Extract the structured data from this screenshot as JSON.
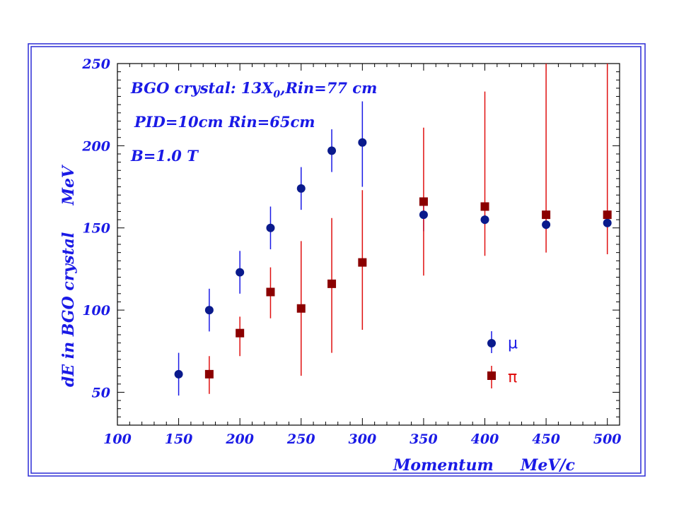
{
  "colors": {
    "frame": "#2b2bd6",
    "axis_text": "#1a1ae6",
    "axis_line": "#000000",
    "mu": "#0a1a8c",
    "pi_fill": "#8b0000",
    "pi_err": "#e01010",
    "mu_err": "#1a1ae6",
    "pi_legend_text": "#e01010"
  },
  "annotations": {
    "line1_a": "BGO crystal:  13X",
    "line1_sub": "0",
    "line1_b": ",Rin=77 cm",
    "line2": "PID=10cm  Rin=65cm",
    "line3": "B=1.0 T"
  },
  "chart_data": {
    "type": "scatter",
    "xlabel": "Momentum     MeV/c",
    "ylabel": "dE in BGO crystal     MeV",
    "xlim": [
      100,
      510
    ],
    "ylim": [
      30,
      250
    ],
    "xticks": [
      100,
      150,
      200,
      250,
      300,
      350,
      400,
      450,
      500
    ],
    "yticks": [
      50,
      100,
      150,
      200,
      250
    ],
    "series": [
      {
        "name": "μ",
        "marker": "circle",
        "points": [
          {
            "x": 150,
            "y": 61,
            "lo": 48,
            "hi": 74
          },
          {
            "x": 175,
            "y": 100,
            "lo": 87,
            "hi": 113
          },
          {
            "x": 200,
            "y": 123,
            "lo": 110,
            "hi": 136
          },
          {
            "x": 225,
            "y": 150,
            "lo": 137,
            "hi": 163
          },
          {
            "x": 250,
            "y": 174,
            "lo": 161,
            "hi": 187
          },
          {
            "x": 275,
            "y": 197,
            "lo": 184,
            "hi": 210
          },
          {
            "x": 300,
            "y": 202,
            "lo": 175,
            "hi": 227
          },
          {
            "x": 350,
            "y": 158,
            "lo": 148,
            "hi": 166
          },
          {
            "x": 400,
            "y": 155,
            "lo": 152,
            "hi": 158
          },
          {
            "x": 450,
            "y": 152,
            "lo": 149,
            "hi": 155
          },
          {
            "x": 500,
            "y": 153,
            "lo": 150,
            "hi": 156
          }
        ]
      },
      {
        "name": "π",
        "marker": "square",
        "points": [
          {
            "x": 175,
            "y": 61,
            "lo": 49,
            "hi": 72
          },
          {
            "x": 200,
            "y": 86,
            "lo": 72,
            "hi": 96
          },
          {
            "x": 225,
            "y": 111,
            "lo": 95,
            "hi": 126
          },
          {
            "x": 250,
            "y": 101,
            "lo": 60,
            "hi": 142
          },
          {
            "x": 275,
            "y": 116,
            "lo": 74,
            "hi": 156
          },
          {
            "x": 300,
            "y": 129,
            "lo": 88,
            "hi": 173
          },
          {
            "x": 350,
            "y": 166,
            "lo": 121,
            "hi": 211
          },
          {
            "x": 400,
            "y": 163,
            "lo": 133,
            "hi": 233
          },
          {
            "x": 450,
            "y": 158,
            "lo": 135,
            "hi": 250
          },
          {
            "x": 500,
            "y": 158,
            "lo": 134,
            "hi": 250
          }
        ]
      }
    ],
    "legend_position": "bottom-right"
  }
}
